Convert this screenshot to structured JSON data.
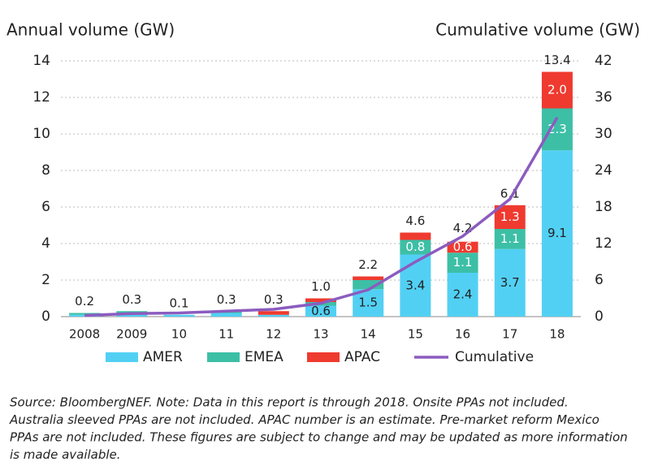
{
  "chart_data": {
    "type": "bar",
    "stacked": true,
    "title_left": "Annual volume (GW)",
    "title_right": "Cumulative volume (GW)",
    "categories": [
      "2008",
      "2009",
      "10",
      "11",
      "12",
      "13",
      "14",
      "15",
      "16",
      "17",
      "18"
    ],
    "series": [
      {
        "name": "AMER",
        "color": "#52d0f4",
        "values": [
          0.1,
          0.1,
          0.1,
          0.2,
          0.1,
          0.6,
          1.5,
          3.4,
          2.4,
          3.7,
          9.1
        ],
        "value_labels": [
          null,
          null,
          null,
          null,
          null,
          "0.6",
          "1.5",
          "3.4",
          "2.4",
          "3.7",
          "9.1"
        ]
      },
      {
        "name": "EMEA",
        "color": "#3dbfa6",
        "values": [
          0.1,
          0.2,
          0,
          0.1,
          0,
          0.2,
          0.5,
          0.8,
          1.1,
          1.1,
          2.3
        ],
        "value_labels": [
          null,
          null,
          null,
          null,
          null,
          null,
          null,
          "0.8",
          "1.1",
          "1.1",
          "2.3"
        ]
      },
      {
        "name": "APAC",
        "color": "#ef3a2f",
        "values": [
          0,
          0,
          0,
          0,
          0.2,
          0.2,
          0.2,
          0.4,
          0.6,
          1.3,
          2.0
        ],
        "value_labels": [
          null,
          null,
          null,
          null,
          null,
          null,
          null,
          null,
          "0.6",
          "1.3",
          "2.0"
        ]
      },
      {
        "name": "Cumulative",
        "color": "#8b5cbf",
        "axis": "y2",
        "type": "line",
        "values": [
          0.2,
          0.5,
          0.6,
          0.9,
          1.2,
          2.2,
          4.4,
          9.0,
          13.2,
          19.3,
          32.7
        ]
      }
    ],
    "totals": [
      0.2,
      0.3,
      0.1,
      0.3,
      0.3,
      1.0,
      2.2,
      4.6,
      4.2,
      6.1,
      13.4
    ],
    "total_labels": [
      "0.2",
      "0.3",
      "0.1",
      "0.3",
      "0.3",
      "1.0",
      "2.2",
      "4.6",
      "4.2",
      "6.1",
      "13.4"
    ],
    "ylim": [
      0,
      14
    ],
    "yticks": [
      0,
      2,
      4,
      6,
      8,
      10,
      12,
      14
    ],
    "y2lim": [
      0,
      42
    ],
    "y2ticks": [
      0,
      6,
      12,
      18,
      24,
      30,
      36,
      42
    ],
    "grid": true,
    "notes": [
      "Source: BloombergNEF. Note: Data in this report is through 2018. Onsite PPAs not included.",
      "Australia sleeved PPAs are not included. APAC number is an estimate. Pre-market reform Mexico",
      "PPAs are not included. These figures are subject to change and may be updated as more information",
      "is made available."
    ]
  }
}
